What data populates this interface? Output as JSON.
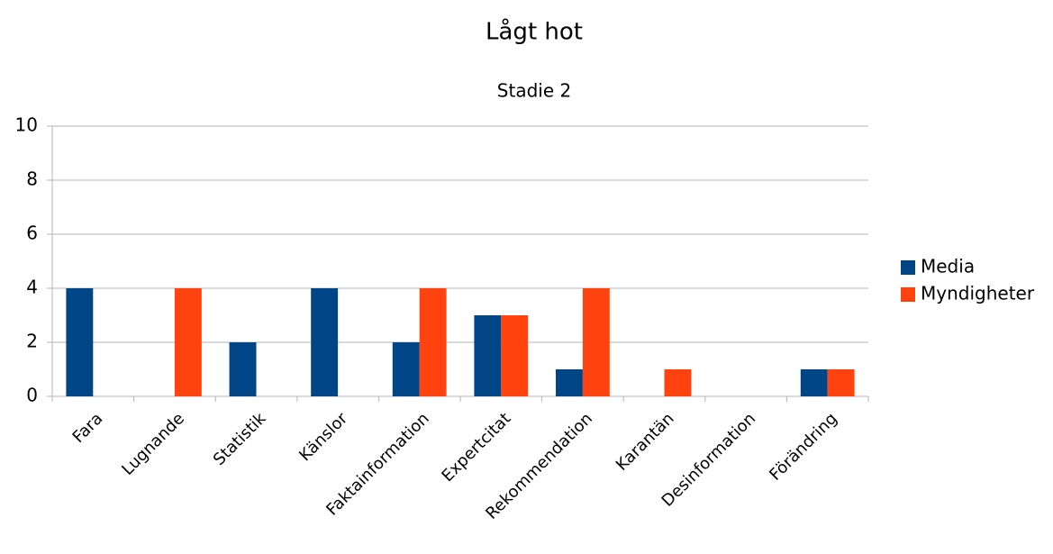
{
  "chart_data": {
    "type": "bar",
    "title": "Lågt hot",
    "subtitle": "Stadie 2",
    "categories": [
      "Fara",
      "Lugnande",
      "Statistik",
      "Känslor",
      "Faktainformation",
      "Expertcitat",
      "Rekommendation",
      "Karantän",
      "Desinformation",
      "Förändring"
    ],
    "series": [
      {
        "name": "Media",
        "color": "#004586",
        "values": [
          4,
          0,
          2,
          4,
          2,
          3,
          1,
          0,
          0,
          1
        ]
      },
      {
        "name": "Myndigheter",
        "color": "#ff420e",
        "values": [
          0,
          4,
          0,
          0,
          4,
          3,
          4,
          1,
          0,
          1
        ]
      }
    ],
    "ylim": [
      0,
      10
    ],
    "yticks": [
      0,
      2,
      4,
      6,
      8,
      10
    ],
    "grid": true,
    "legend": "right"
  }
}
